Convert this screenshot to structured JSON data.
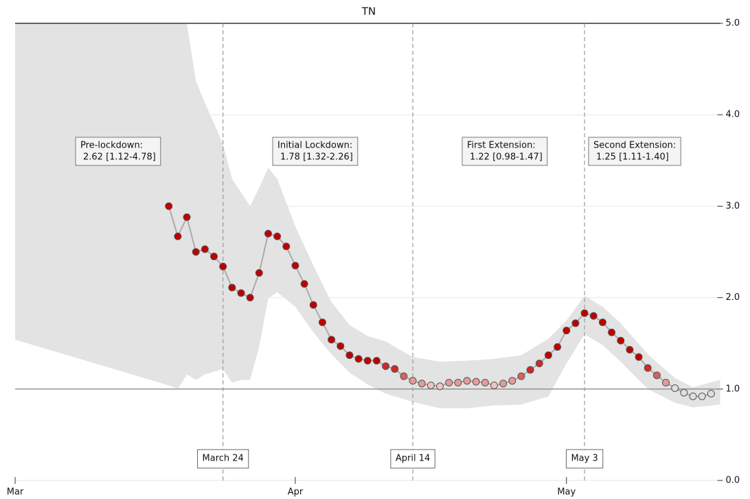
{
  "chart_data": {
    "type": "line",
    "title": "TN",
    "xlim": [
      0,
      78
    ],
    "xticks": [
      {
        "value": 0,
        "label": "Mar"
      },
      {
        "value": 31,
        "label": "Apr"
      },
      {
        "value": 61,
        "label": "May"
      }
    ],
    "ylim": [
      0,
      5
    ],
    "yticks": [
      {
        "value": 0,
        "label": "0.0"
      },
      {
        "value": 1,
        "label": "1.0"
      },
      {
        "value": 2,
        "label": "2.0"
      },
      {
        "value": 3,
        "label": "3.0"
      },
      {
        "value": 4,
        "label": "4.0"
      },
      {
        "value": 5,
        "label": "5.0"
      }
    ],
    "y_axis_side": "right",
    "grid": true,
    "reference_line": 1,
    "series": [
      {
        "line_color": "#aaaaaa",
        "x": [
          17,
          18,
          19,
          20,
          21,
          22,
          23,
          24,
          25,
          26,
          27,
          28,
          29,
          30,
          31,
          32,
          33,
          34,
          35,
          36,
          37,
          38,
          39,
          40,
          41,
          42,
          43,
          44,
          45,
          46,
          47,
          48,
          49,
          50,
          51,
          52,
          53,
          54,
          55,
          56,
          57,
          58,
          59,
          60,
          61,
          62,
          63,
          64,
          65,
          66,
          67,
          68,
          69,
          70,
          71,
          72,
          73,
          74,
          75,
          76,
          77
        ],
        "values": [
          3.0,
          2.67,
          2.88,
          2.5,
          2.53,
          2.45,
          2.34,
          2.11,
          2.05,
          2.0,
          2.27,
          2.7,
          2.67,
          2.56,
          2.35,
          2.15,
          1.92,
          1.73,
          1.54,
          1.47,
          1.37,
          1.33,
          1.31,
          1.31,
          1.25,
          1.22,
          1.14,
          1.09,
          1.06,
          1.04,
          1.03,
          1.07,
          1.07,
          1.09,
          1.08,
          1.07,
          1.04,
          1.06,
          1.09,
          1.14,
          1.21,
          1.28,
          1.37,
          1.46,
          1.64,
          1.72,
          1.83,
          1.8,
          1.73,
          1.62,
          1.53,
          1.43,
          1.35,
          1.23,
          1.15,
          1.07,
          1.01,
          0.96,
          0.92,
          0.92,
          0.95
        ],
        "colors": [
          "#c00000",
          "#c00000",
          "#c00000",
          "#c00000",
          "#c00000",
          "#c00000",
          "#c00000",
          "#c00000",
          "#c00000",
          "#c00000",
          "#c00000",
          "#c00000",
          "#c00000",
          "#c00000",
          "#c00000",
          "#c00000",
          "#c00000",
          "#c00000",
          "#c00000",
          "#c00000",
          "#c00000",
          "#c00000",
          "#c00000",
          "#c00000",
          "#cc2a2a",
          "#cc2a2a",
          "#d96060",
          "#e59a9a",
          "#e59a9a",
          "#edc4c4",
          "#edc4c4",
          "#e59a9a",
          "#e59a9a",
          "#e59a9a",
          "#e59a9a",
          "#e59a9a",
          "#edc4c4",
          "#e59a9a",
          "#e59a9a",
          "#d96060",
          "#cc2a2a",
          "#cc2a2a",
          "#c00000",
          "#c00000",
          "#c00000",
          "#c00000",
          "#c00000",
          "#c00000",
          "#c00000",
          "#c00000",
          "#c00000",
          "#c00000",
          "#c00000",
          "#cc2a2a",
          "#d96060",
          "#e59a9a",
          "#e2dcdc",
          "#e2dcdc",
          "#e2dcdc",
          "#e2dcdc",
          "#e2dcdc"
        ]
      }
    ],
    "interval": {
      "color": "#e3e3e3",
      "x": [
        0,
        17,
        18,
        19,
        20,
        21,
        23,
        24,
        25,
        26,
        27,
        28,
        29,
        31,
        33,
        35,
        37,
        39,
        41,
        44,
        47,
        50,
        53,
        56,
        59,
        61,
        63,
        65,
        67,
        70,
        73,
        75,
        78
      ],
      "upper": [
        5,
        5,
        5,
        5,
        4.37,
        4.13,
        3.68,
        3.3,
        3.15,
        3.0,
        3.2,
        3.42,
        3.3,
        2.78,
        2.35,
        1.95,
        1.7,
        1.58,
        1.52,
        1.35,
        1.3,
        1.31,
        1.33,
        1.37,
        1.55,
        1.75,
        2.02,
        1.9,
        1.72,
        1.38,
        1.12,
        1.02,
        1.1
      ],
      "lower": [
        1.54,
        1.04,
        1.0,
        1.16,
        1.1,
        1.16,
        1.22,
        1.07,
        1.1,
        1.1,
        1.46,
        1.99,
        2.06,
        1.9,
        1.62,
        1.38,
        1.18,
        1.05,
        0.95,
        0.86,
        0.79,
        0.79,
        0.82,
        0.83,
        0.92,
        1.28,
        1.6,
        1.48,
        1.3,
        1.0,
        0.85,
        0.8,
        0.83
      ]
    },
    "events": [
      {
        "x": 23,
        "label": "March 24"
      },
      {
        "x": 44,
        "label": "April 14"
      },
      {
        "x": 63,
        "label": "May 3"
      }
    ],
    "annotations": [
      {
        "lines": [
          "Pre-lockdown:",
          "2.62 [1.12-4.78]"
        ]
      },
      {
        "lines": [
          "Initial Lockdown:",
          "1.78 [1.32-2.26]"
        ]
      },
      {
        "lines": [
          "First Extension:",
          "1.22 [0.98-1.47]"
        ]
      },
      {
        "lines": [
          "Second Extension:",
          "1.25 [1.11-1.40]"
        ]
      }
    ]
  }
}
